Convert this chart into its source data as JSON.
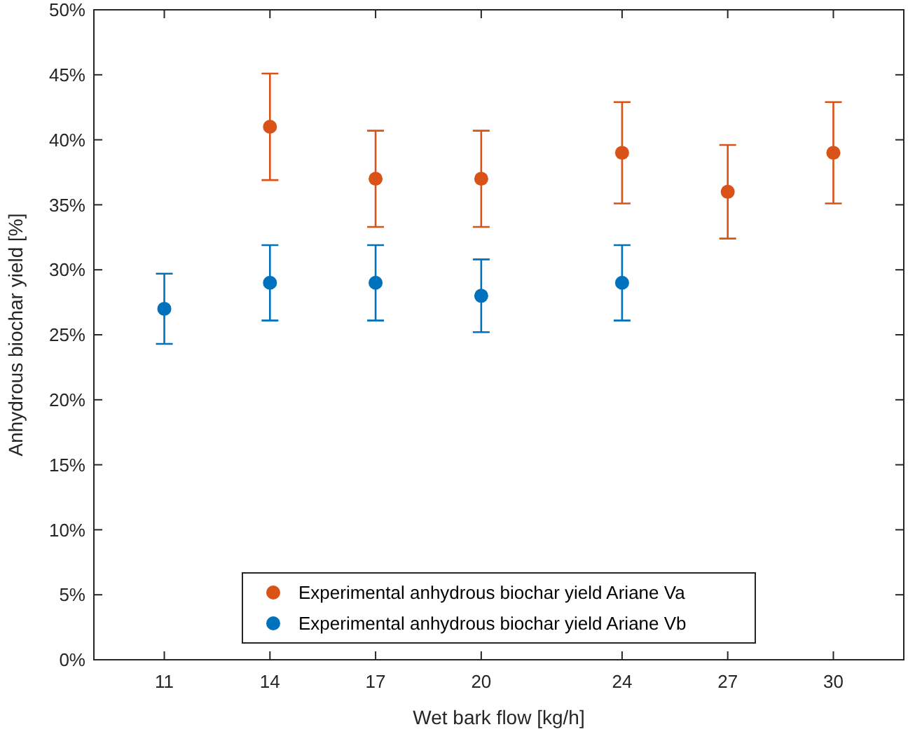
{
  "chart_data": {
    "type": "scatter",
    "xlabel": "Wet bark flow [kg/h]",
    "ylabel": "Anhydrous biochar yield [%]",
    "xlim": [
      9,
      32
    ],
    "xticks": [
      11,
      14,
      17,
      20,
      24,
      27,
      30
    ],
    "ylim": [
      0,
      50
    ],
    "yticks": [
      {
        "value": 0,
        "label": "0%"
      },
      {
        "value": 5,
        "label": "5%"
      },
      {
        "value": 10,
        "label": "10%"
      },
      {
        "value": 15,
        "label": "15%"
      },
      {
        "value": 20,
        "label": "20%"
      },
      {
        "value": 25,
        "label": "25%"
      },
      {
        "value": 30,
        "label": "30%"
      },
      {
        "value": 35,
        "label": "35%"
      },
      {
        "value": 40,
        "label": "40%"
      },
      {
        "value": 45,
        "label": "45%"
      },
      {
        "value": 50,
        "label": "50%"
      }
    ],
    "grid": false,
    "legend": "bottom",
    "marker": "circle",
    "series": [
      {
        "name": "Experimental anhydrous biochar yield Ariane Va",
        "color": "#d95319",
        "x": [
          14,
          17,
          20,
          24,
          27,
          30
        ],
        "values": [
          41,
          37,
          37,
          39,
          36,
          39
        ],
        "errors": [
          4.1,
          3.7,
          3.7,
          3.9,
          3.6,
          3.9
        ]
      },
      {
        "name": "Experimental anhydrous biochar yield Ariane Vb",
        "color": "#0072bd",
        "x": [
          11,
          14,
          17,
          20,
          24
        ],
        "values": [
          27,
          29,
          29,
          28,
          29
        ],
        "errors": [
          2.7,
          2.9,
          2.9,
          2.8,
          2.9
        ]
      }
    ]
  }
}
